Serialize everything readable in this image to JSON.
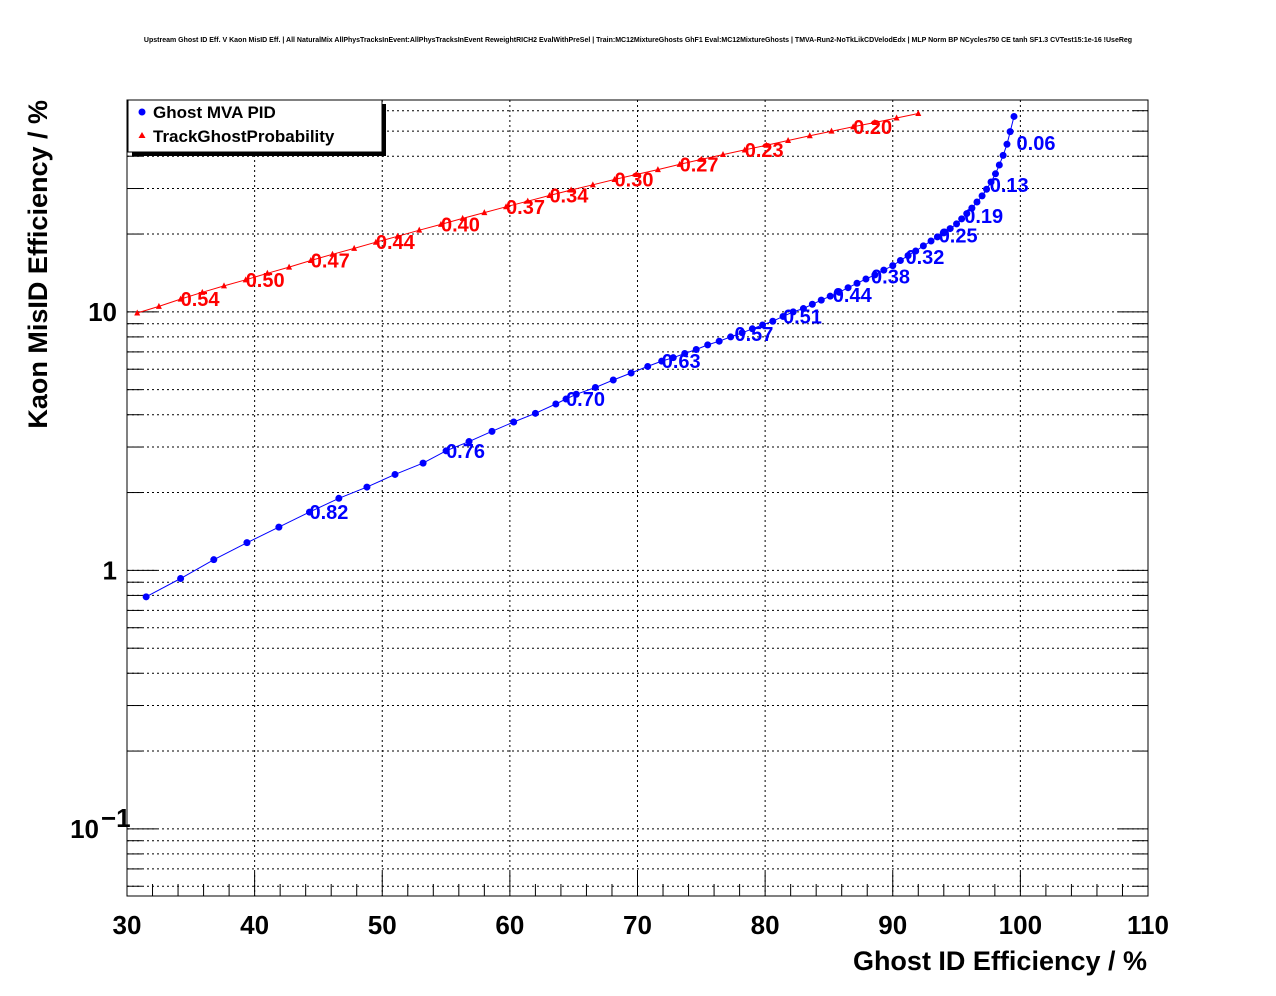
{
  "chart_data": {
    "type": "scatter",
    "title": "Upstream Ghost ID Eff. V Kaon MisID Eff. | All NaturalMix AllPhysTracksInEvent:AllPhysTracksInEvent ReweightRICH2 EvalWithPreSel | Train:MC12MixtureGhosts GhF1 Eval:MC12MixtureGhosts | TMVA-Run2-NoTkLikCDVelodEdx | MLP Norm BP NCycles750 CE tanh SF1.3 CVTest15:1e-16 !UseReg",
    "xlabel": "Ghost ID Efficiency / %",
    "ylabel": "Kaon MisID Efficiency / %",
    "xlim": [
      30,
      110
    ],
    "ylim": [
      0.055,
      66
    ],
    "yscale": "log",
    "grid": true,
    "legend_position": "top-left",
    "x_ticks": [
      "30",
      "40",
      "50",
      "60",
      "70",
      "80",
      "90",
      "100",
      "110"
    ],
    "y_ticks": [
      "1",
      "10"
    ],
    "y_tick_minus1": {
      "base": "10",
      "exp": "−1"
    },
    "series": [
      {
        "name": "Ghost MVA PID",
        "color": "#0000ff",
        "marker": "circle",
        "points": [
          [
            31.5,
            0.79
          ],
          [
            34.2,
            0.93
          ],
          [
            36.8,
            1.1
          ],
          [
            39.4,
            1.28
          ],
          [
            41.9,
            1.47
          ],
          [
            44.3,
            1.68
          ],
          [
            46.6,
            1.9
          ],
          [
            48.8,
            2.1
          ],
          [
            51.0,
            2.35
          ],
          [
            53.2,
            2.6
          ],
          [
            55.0,
            2.9
          ],
          [
            56.8,
            3.15
          ],
          [
            58.6,
            3.45
          ],
          [
            60.3,
            3.75
          ],
          [
            62.0,
            4.05
          ],
          [
            63.6,
            4.4
          ],
          [
            64.4,
            4.6
          ],
          [
            65.2,
            4.8
          ],
          [
            66.7,
            5.1
          ],
          [
            68.1,
            5.45
          ],
          [
            69.5,
            5.8
          ],
          [
            70.8,
            6.15
          ],
          [
            71.9,
            6.45
          ],
          [
            72.8,
            6.65
          ],
          [
            73.7,
            6.9
          ],
          [
            74.6,
            7.15
          ],
          [
            75.5,
            7.45
          ],
          [
            76.4,
            7.7
          ],
          [
            77.3,
            8.0
          ],
          [
            78.2,
            8.3
          ],
          [
            79.0,
            8.6
          ],
          [
            79.8,
            8.9
          ],
          [
            80.6,
            9.2
          ],
          [
            81.4,
            9.6
          ],
          [
            82.2,
            10.0
          ],
          [
            83.0,
            10.3
          ],
          [
            83.7,
            10.7
          ],
          [
            84.4,
            11.1
          ],
          [
            85.1,
            11.5
          ],
          [
            85.8,
            11.9
          ],
          [
            86.5,
            12.4
          ],
          [
            87.2,
            12.9
          ],
          [
            87.9,
            13.4
          ],
          [
            88.6,
            13.9
          ],
          [
            89.3,
            14.5
          ],
          [
            90.0,
            15.1
          ],
          [
            90.6,
            15.8
          ],
          [
            91.2,
            16.5
          ],
          [
            91.8,
            17.2
          ],
          [
            92.4,
            18.0
          ],
          [
            93.0,
            18.8
          ],
          [
            93.5,
            19.5
          ],
          [
            94.0,
            20.2
          ],
          [
            94.5,
            21.0
          ],
          [
            95.0,
            21.9
          ],
          [
            95.4,
            22.9
          ],
          [
            95.8,
            24.0
          ],
          [
            96.2,
            25.2
          ],
          [
            96.6,
            26.6
          ],
          [
            97.0,
            28.1
          ],
          [
            97.35,
            29.8
          ],
          [
            97.7,
            31.8
          ],
          [
            98.05,
            34.2
          ],
          [
            98.35,
            37.0
          ],
          [
            98.65,
            40.3
          ],
          [
            98.95,
            44.5
          ],
          [
            99.2,
            49.8
          ],
          [
            99.5,
            57.0
          ]
        ],
        "labels": [
          {
            "text": "0.82",
            "x": 44.3,
            "y": 1.68
          },
          {
            "text": "0.76",
            "x": 55.0,
            "y": 2.9
          },
          {
            "text": "0.70",
            "x": 64.4,
            "y": 4.6
          },
          {
            "text": "0.63",
            "x": 71.9,
            "y": 6.45
          },
          {
            "text": "0.57",
            "x": 77.6,
            "y": 8.2
          },
          {
            "text": "0.51",
            "x": 81.4,
            "y": 9.6
          },
          {
            "text": "0.44",
            "x": 85.3,
            "y": 11.6
          },
          {
            "text": "0.38",
            "x": 88.3,
            "y": 13.7
          },
          {
            "text": "0.32",
            "x": 91.0,
            "y": 16.3
          },
          {
            "text": "0.25",
            "x": 93.6,
            "y": 19.7
          },
          {
            "text": "0.19",
            "x": 95.6,
            "y": 23.5
          },
          {
            "text": "0.13",
            "x": 97.6,
            "y": 31.0
          },
          {
            "text": "0.06",
            "x": 99.7,
            "y": 45.0
          }
        ]
      },
      {
        "name": "TrackGhostProbability",
        "color": "#ff0000",
        "marker": "triangle",
        "points": [
          [
            30.8,
            9.9
          ],
          [
            32.5,
            10.5
          ],
          [
            34.2,
            11.2
          ],
          [
            35.9,
            11.9
          ],
          [
            37.6,
            12.6
          ],
          [
            39.3,
            13.3
          ],
          [
            41.0,
            14.1
          ],
          [
            42.7,
            14.9
          ],
          [
            44.4,
            15.8
          ],
          [
            46.1,
            16.7
          ],
          [
            47.8,
            17.6
          ],
          [
            49.5,
            18.6
          ],
          [
            51.2,
            19.6
          ],
          [
            52.9,
            20.7
          ],
          [
            54.6,
            21.8
          ],
          [
            56.3,
            23.0
          ],
          [
            58.0,
            24.2
          ],
          [
            59.7,
            25.5
          ],
          [
            61.4,
            26.8
          ],
          [
            63.1,
            28.2
          ],
          [
            64.8,
            29.6
          ],
          [
            66.5,
            31.0
          ],
          [
            68.2,
            32.5
          ],
          [
            69.9,
            34.0
          ],
          [
            71.6,
            35.5
          ],
          [
            73.3,
            37.2
          ],
          [
            75.0,
            38.9
          ],
          [
            76.7,
            40.6
          ],
          [
            78.4,
            42.3
          ],
          [
            80.1,
            44.1
          ],
          [
            81.8,
            46.0
          ],
          [
            83.5,
            48.0
          ],
          [
            85.2,
            50.0
          ],
          [
            86.9,
            52.0
          ],
          [
            88.6,
            54.0
          ],
          [
            90.3,
            56.2
          ],
          [
            92.0,
            58.5
          ]
        ],
        "labels": [
          {
            "text": "0.54",
            "x": 34.2,
            "y": 11.2
          },
          {
            "text": "0.50",
            "x": 39.3,
            "y": 13.3
          },
          {
            "text": "0.47",
            "x": 44.4,
            "y": 15.8
          },
          {
            "text": "0.44",
            "x": 49.5,
            "y": 18.6
          },
          {
            "text": "0.40",
            "x": 54.6,
            "y": 21.8
          },
          {
            "text": "0.37",
            "x": 59.7,
            "y": 25.5
          },
          {
            "text": "0.34",
            "x": 63.1,
            "y": 28.2
          },
          {
            "text": "0.30",
            "x": 68.2,
            "y": 32.5
          },
          {
            "text": "0.27",
            "x": 73.3,
            "y": 37.2
          },
          {
            "text": "0.23",
            "x": 78.4,
            "y": 42.3
          },
          {
            "text": "0.20",
            "x": 86.9,
            "y": 52.0
          }
        ]
      }
    ]
  }
}
